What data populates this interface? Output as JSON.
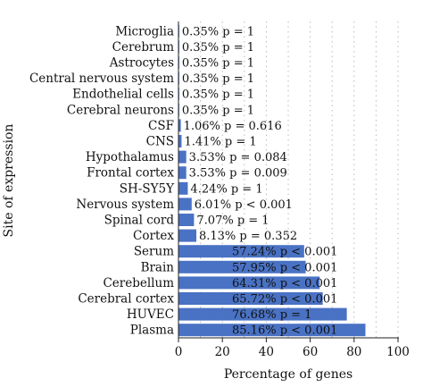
{
  "chart_data": {
    "type": "bar",
    "orientation": "horizontal",
    "title": "",
    "xlabel": "Percentage of genes",
    "ylabel": "Site of expression",
    "xlim": [
      0,
      100
    ],
    "xticks": [
      0,
      20,
      40,
      60,
      80,
      100
    ],
    "grid": "dotted vertical",
    "colors": {
      "bar": "#4a72c4",
      "grid": "#b9b9b9",
      "text": "#111111",
      "bar_label_inside": "#ffffff"
    },
    "categories": [
      "Microglia",
      "Cerebrum",
      "Astrocytes",
      "Central nervous system",
      "Endothelial cells",
      "Cerebral neurons",
      "CSF",
      "CNS",
      "Hypothalamus",
      "Frontal cortex",
      "SH-SY5Y",
      "Nervous system",
      "Spinal cord",
      "Cortex",
      "Serum",
      "Brain",
      "Cerebellum",
      "Cerebral cortex",
      "HUVEC",
      "Plasma"
    ],
    "values": [
      0.35,
      0.35,
      0.35,
      0.35,
      0.35,
      0.35,
      1.06,
      1.41,
      3.53,
      3.53,
      4.24,
      6.01,
      7.07,
      8.13,
      57.24,
      57.95,
      64.31,
      65.72,
      76.68,
      85.16
    ],
    "labels": [
      "0.35% p = 1",
      "0.35% p = 1",
      "0.35% p = 1",
      "0.35% p = 1",
      "0.35% p = 1",
      "0.35% p = 1",
      "1.06% p = 0.616",
      "1.41% p = 1",
      "3.53% p = 0.084",
      "3.53% p = 0.009",
      "4.24% p = 1",
      "6.01% p < 0.001",
      "7.07% p = 1",
      "8.13% p = 0.352",
      "57.24% p < 0.001",
      "57.95% p < 0.001",
      "64.31% p < 0.001",
      "65.72% p < 0.001",
      "76.68% p = 1",
      "85.16% p < 0.001"
    ]
  }
}
